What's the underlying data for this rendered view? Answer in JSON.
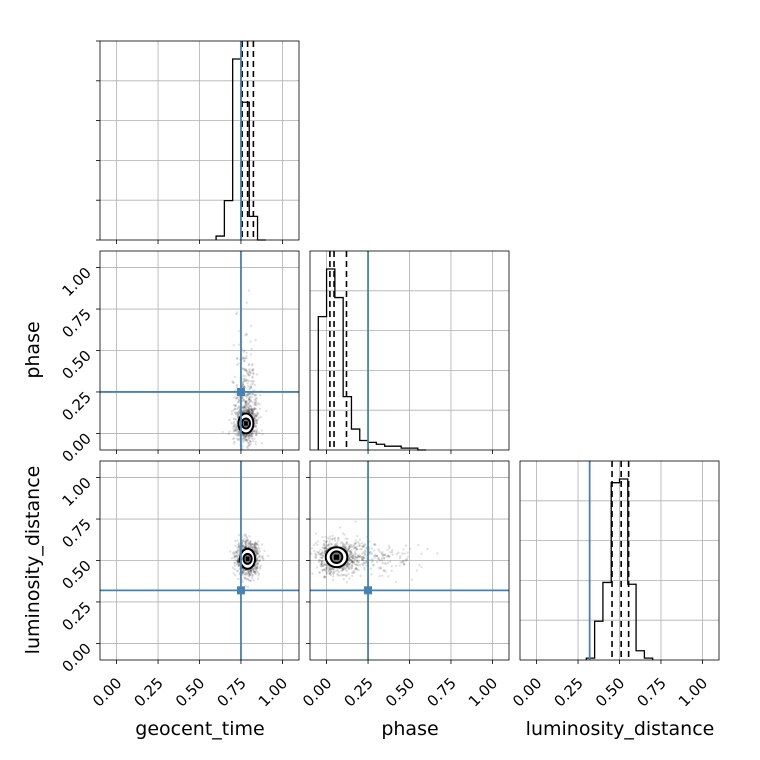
{
  "chart_data": {
    "type": "corner",
    "parameters": [
      "geocent_time",
      "phase",
      "luminosity_distance"
    ],
    "truths": [
      0.75,
      0.25,
      0.32
    ],
    "ticks": [
      0.0,
      0.25,
      0.5,
      0.75,
      1.0
    ],
    "tick_labels": [
      "0.00",
      "0.25",
      "0.50",
      "0.75",
      "1.00"
    ],
    "axis_range": [
      -0.1,
      1.1
    ],
    "grid": true,
    "colors": {
      "truth": "#4682b4",
      "hist": "#000000",
      "points": "#000000"
    },
    "histograms": {
      "geocent_time": {
        "edges": [
          0.6,
          0.65,
          0.7,
          0.75,
          0.8,
          0.85,
          0.9
        ],
        "counts": [
          0.02,
          0.2,
          0.92,
          0.7,
          0.12,
          0.0
        ],
        "quantiles": [
          0.757,
          0.79,
          0.825
        ]
      },
      "phase": {
        "edges": [
          -0.05,
          0.0,
          0.05,
          0.1,
          0.15,
          0.2,
          0.25,
          0.3,
          0.35,
          0.4,
          0.45,
          0.5,
          0.55,
          0.6
        ],
        "counts": [
          0.7,
          0.95,
          0.8,
          0.28,
          0.11,
          0.05,
          0.04,
          0.03,
          0.02,
          0.02,
          0.01,
          0.01,
          0.0
        ],
        "quantiles": [
          0.02,
          0.045,
          0.12
        ]
      },
      "luminosity_distance": {
        "edges": [
          0.3,
          0.35,
          0.4,
          0.45,
          0.5,
          0.55,
          0.6,
          0.65,
          0.7
        ],
        "counts": [
          0.01,
          0.21,
          0.42,
          0.96,
          0.98,
          0.41,
          0.05,
          0.01
        ],
        "quantiles": [
          0.455,
          0.51,
          0.555
        ]
      }
    },
    "scatter_panels": [
      {
        "x": "geocent_time",
        "y": "phase",
        "center": [
          0.78,
          0.06
        ],
        "spread": [
          0.035,
          0.06
        ],
        "tail": [
          0.0,
          0.45
        ],
        "contours": [
          [
            0.025,
            0.03
          ],
          [
            0.045,
            0.06
          ]
        ]
      },
      {
        "x": "geocent_time",
        "y": "luminosity_distance",
        "center": [
          0.79,
          0.51
        ],
        "spread": [
          0.035,
          0.05
        ],
        "tail": [
          0.0,
          0.0
        ],
        "contours": [
          [
            0.025,
            0.03
          ],
          [
            0.045,
            0.06
          ]
        ]
      },
      {
        "x": "phase",
        "y": "luminosity_distance",
        "center": [
          0.06,
          0.52
        ],
        "spread": [
          0.06,
          0.05
        ],
        "tail": [
          0.35,
          0.0
        ],
        "contours": [
          [
            0.035,
            0.035
          ],
          [
            0.065,
            0.06
          ]
        ]
      }
    ]
  }
}
